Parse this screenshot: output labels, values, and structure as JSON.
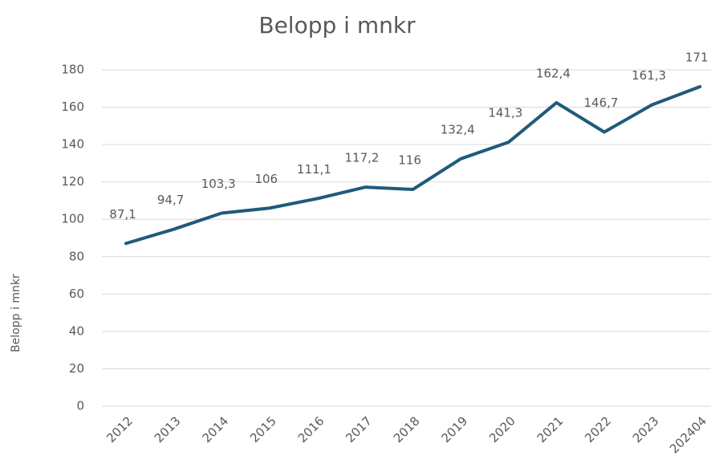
{
  "chart_data": {
    "type": "line",
    "title": "Belopp i mnkr",
    "y_label": "Belopp i mnkr",
    "categories": [
      "2012",
      "2013",
      "2014",
      "2015",
      "2016",
      "2017",
      "2018",
      "2019",
      "2020",
      "2021",
      "2022",
      "2023",
      "202404"
    ],
    "values": [
      87.1,
      94.7,
      103.3,
      106,
      111.1,
      117.2,
      116,
      132.4,
      141.3,
      162.4,
      146.7,
      161.3,
      171
    ],
    "value_labels": [
      "87,1",
      "94,7",
      "103,3",
      "106",
      "111,1",
      "117,2",
      "116",
      "132,4",
      "141,3",
      "162,4",
      "146,7",
      "161,3",
      "171"
    ],
    "color": "#1f5a7a",
    "ylim": [
      0,
      180
    ],
    "yticks": [
      0,
      20,
      40,
      60,
      80,
      100,
      120,
      140,
      160,
      180
    ],
    "grid": true
  }
}
